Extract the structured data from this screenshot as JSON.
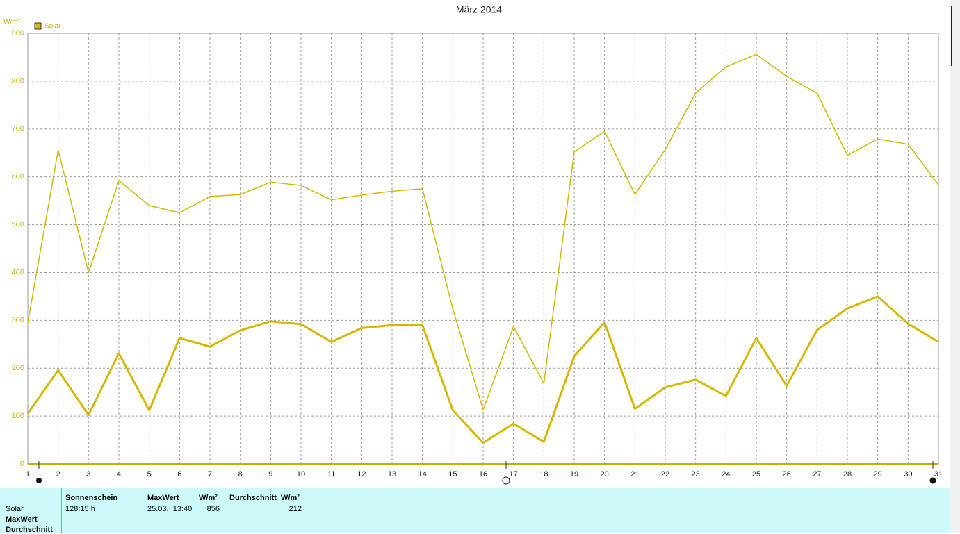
{
  "chart_data": {
    "type": "line",
    "title": "März 2014",
    "y_label": "W/m²",
    "categories": [
      "1",
      "2",
      "3",
      "4",
      "5",
      "6",
      "7",
      "8",
      "9",
      "10",
      "11",
      "12",
      "13",
      "14",
      "15",
      "16",
      "17",
      "18",
      "19",
      "20",
      "21",
      "22",
      "23",
      "24",
      "25",
      "26",
      "27",
      "28",
      "29",
      "30",
      "31"
    ],
    "series": [
      {
        "name": "Solar",
        "color": "#d4b800",
        "width": 1.5,
        "values": [
          295,
          656,
          400,
          592,
          540,
          525,
          559,
          563,
          589,
          582,
          552,
          562,
          570,
          575,
          324,
          113,
          287,
          168,
          652,
          695,
          563,
          657,
          775,
          830,
          856,
          810,
          775,
          645,
          679,
          668,
          583
        ]
      },
      {
        "color": "#d4b800",
        "width": 3,
        "values": [
          105,
          196,
          102,
          231,
          112,
          263,
          245,
          279,
          298,
          292,
          255,
          284,
          290,
          290,
          112,
          44,
          84,
          46,
          225,
          296,
          115,
          160,
          176,
          142,
          263,
          163,
          280,
          325,
          350,
          293,
          255
        ]
      }
    ],
    "ylim": [
      0,
      900
    ],
    "yticks": [
      0,
      100,
      200,
      300,
      400,
      500,
      600,
      700,
      800,
      900
    ],
    "grid": true
  },
  "table": {
    "columns": [
      "Sonnenschein",
      "MaxWert",
      "W/m²",
      "Durchschnitt",
      "W/m²"
    ],
    "row_labels": [
      "Solar",
      "MaxWert",
      "Durchschnitt"
    ],
    "cells": [
      "128:15 h",
      "25.03.  13:40",
      "856",
      "212"
    ]
  }
}
